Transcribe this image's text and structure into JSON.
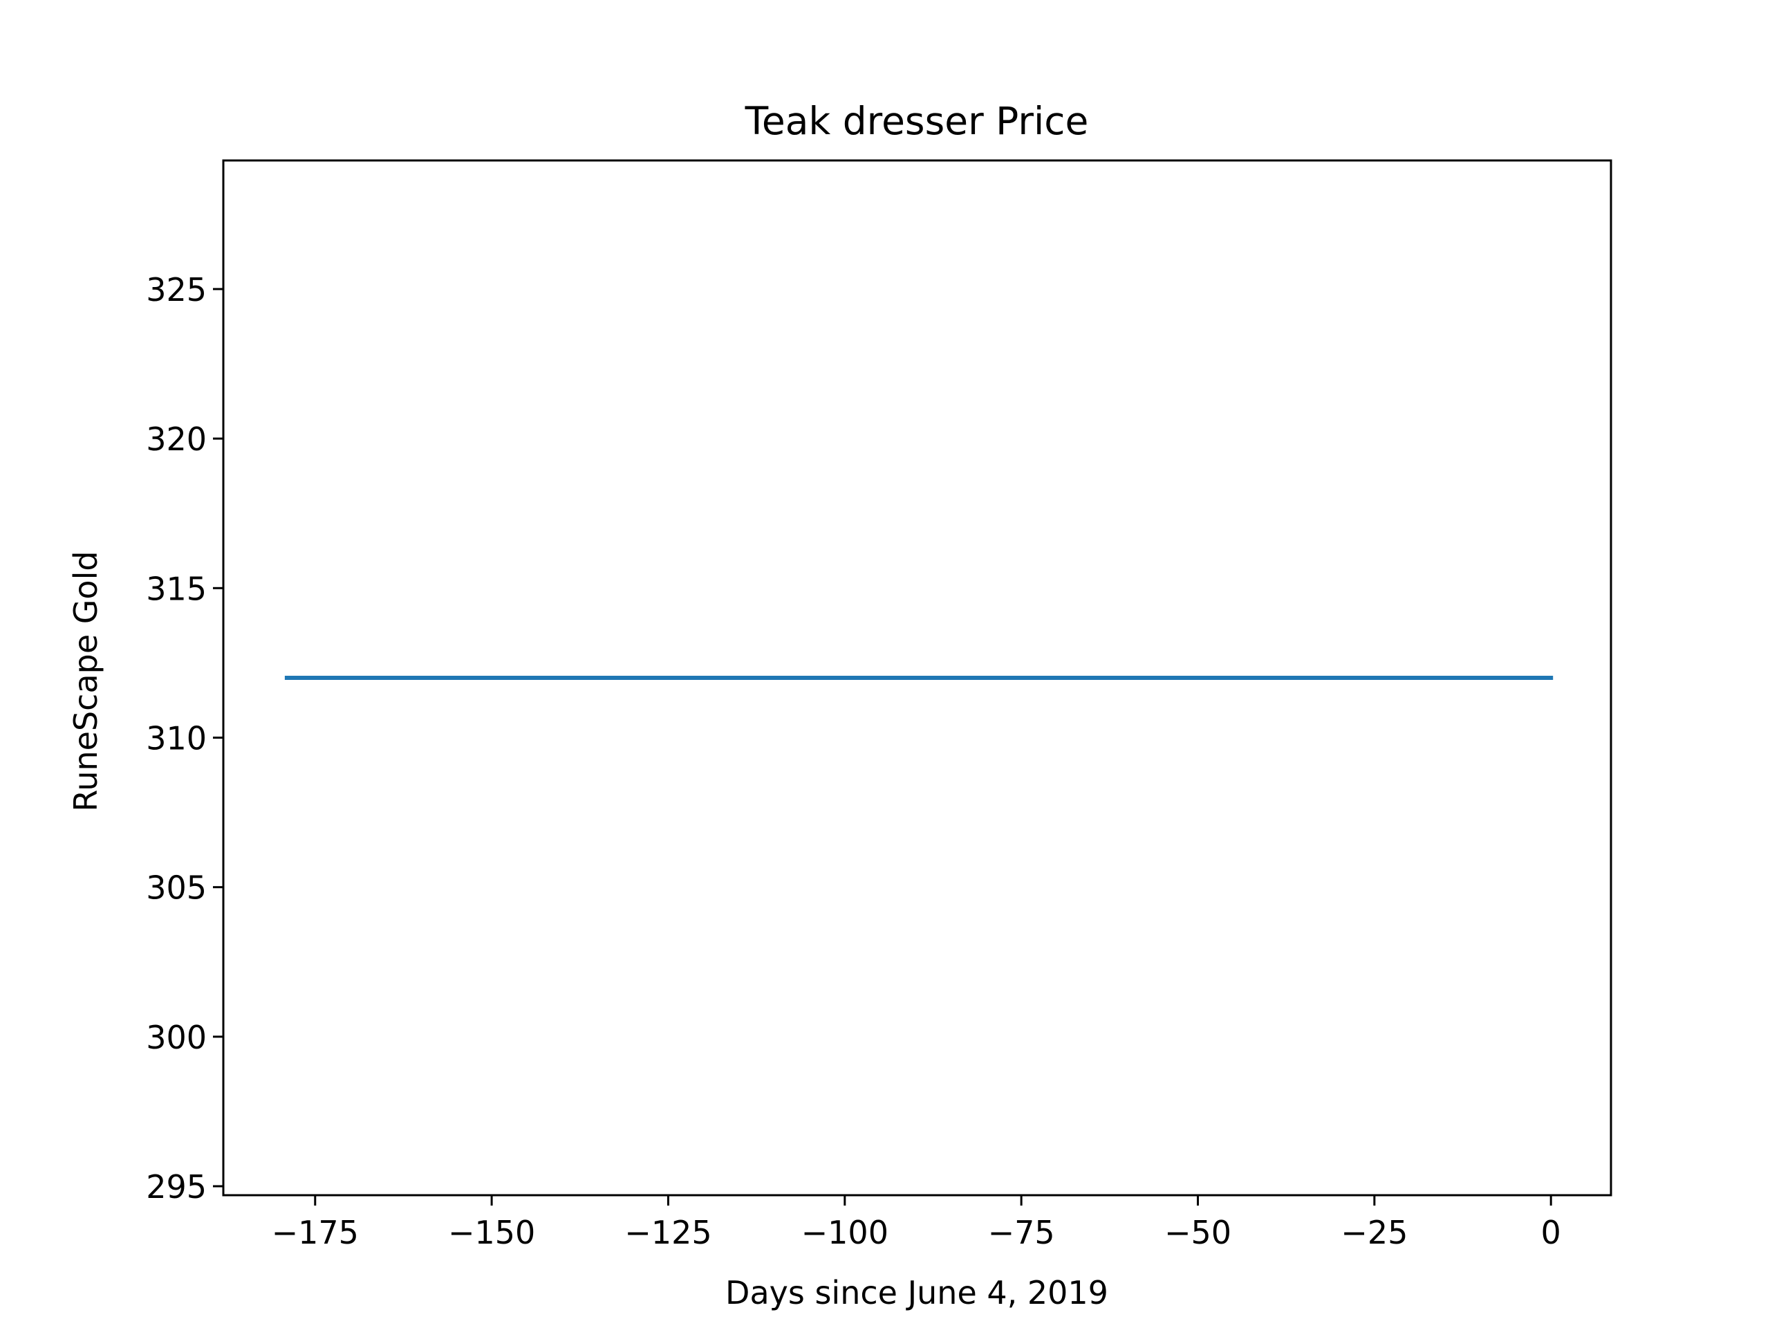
{
  "chart_data": {
    "type": "line",
    "title": "Teak dresser Price",
    "xlabel": "Days since June 4, 2019",
    "ylabel": "RuneScape Gold",
    "xlim": [
      -188,
      8.5
    ],
    "ylim": [
      294.7,
      329.3
    ],
    "xticks": [
      -175,
      -150,
      -125,
      -100,
      -75,
      -50,
      -25,
      0
    ],
    "xtick_labels": [
      "−175",
      "−150",
      "−125",
      "−100",
      "−75",
      "−50",
      "−25",
      "0"
    ],
    "yticks": [
      295,
      300,
      305,
      310,
      315,
      320,
      325
    ],
    "ytick_labels": [
      "295",
      "300",
      "305",
      "310",
      "315",
      "320",
      "325"
    ],
    "grid": false,
    "legend": false,
    "series": [
      {
        "color": "#1f77b4",
        "x": [
          -179,
          0
        ],
        "y": [
          312,
          312
        ]
      }
    ]
  }
}
